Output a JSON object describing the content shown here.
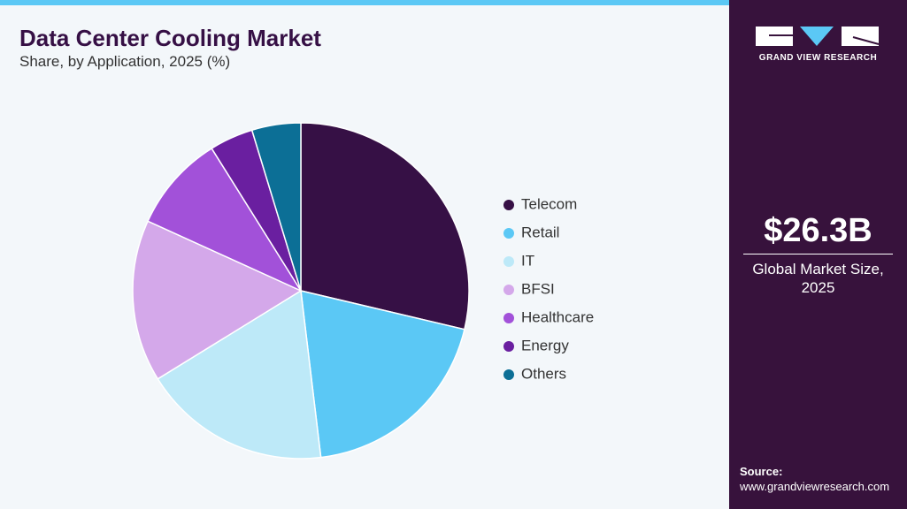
{
  "chart_data": {
    "type": "pie",
    "title": "Data Center Cooling Market",
    "subtitle": "Share, by Application, 2025 (%)",
    "categories": [
      "Telecom",
      "Retail",
      "IT",
      "BFSI",
      "Healthcare",
      "Energy",
      "Others"
    ],
    "values": [
      28.7,
      19.4,
      18.1,
      15.6,
      9.3,
      4.2,
      4.7
    ],
    "colors": [
      "#361045",
      "#5bc8f5",
      "#bde9f8",
      "#d4a8ea",
      "#a251d9",
      "#6a1fa0",
      "#0c6f96"
    ],
    "legend": "right"
  },
  "sidebar": {
    "brand": "GRAND VIEW RESEARCH",
    "market_size": "$26.3B",
    "market_label": "Global Market Size, 2025",
    "source_label": "Source:",
    "source_url": "www.grandviewresearch.com"
  }
}
